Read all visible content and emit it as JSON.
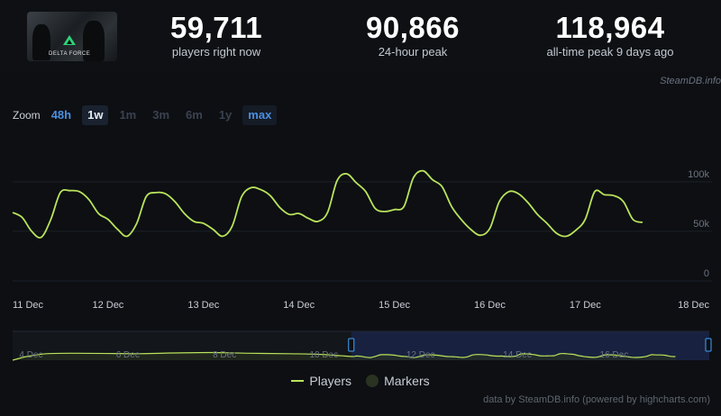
{
  "header": {
    "game_logo_text": "DELTA FORCE",
    "stats": [
      {
        "value": "59,711",
        "label": "players right now"
      },
      {
        "value": "90,866",
        "label": "24-hour peak"
      },
      {
        "value": "118,964",
        "label": "all-time peak 9 days ago"
      }
    ]
  },
  "credit_top": "SteamDB.info",
  "zoom": {
    "label": "Zoom",
    "buttons": [
      {
        "label": "48h",
        "state": "enabled"
      },
      {
        "label": "1w",
        "state": "active"
      },
      {
        "label": "1m",
        "state": "disabled"
      },
      {
        "label": "3m",
        "state": "disabled"
      },
      {
        "label": "6m",
        "state": "disabled"
      },
      {
        "label": "1y",
        "state": "disabled"
      },
      {
        "label": "max",
        "state": "enabled"
      }
    ]
  },
  "chart_data": {
    "type": "line",
    "title": "",
    "xlabel": "",
    "ylabel": "",
    "y_ticks": [
      {
        "value": 0,
        "label": "0"
      },
      {
        "value": 50000,
        "label": "50k"
      },
      {
        "value": 100000,
        "label": "100k"
      }
    ],
    "ylim": [
      0,
      118000
    ],
    "x_ticks": [
      "11 Dec",
      "12 Dec",
      "13 Dec",
      "14 Dec",
      "15 Dec",
      "16 Dec",
      "17 Dec",
      "18 Dec"
    ],
    "xlim": [
      11.0,
      18.3
    ],
    "series": [
      {
        "name": "Players",
        "color": "#b9e35b",
        "points": [
          [
            11.0,
            69000
          ],
          [
            11.1,
            64000
          ],
          [
            11.2,
            50000
          ],
          [
            11.3,
            44000
          ],
          [
            11.4,
            62000
          ],
          [
            11.5,
            89000
          ],
          [
            11.6,
            91000
          ],
          [
            11.7,
            90000
          ],
          [
            11.8,
            82000
          ],
          [
            11.9,
            68000
          ],
          [
            12.0,
            62000
          ],
          [
            12.1,
            52000
          ],
          [
            12.2,
            45000
          ],
          [
            12.3,
            58000
          ],
          [
            12.4,
            85000
          ],
          [
            12.5,
            89000
          ],
          [
            12.6,
            88000
          ],
          [
            12.7,
            80000
          ],
          [
            12.8,
            68000
          ],
          [
            12.9,
            60000
          ],
          [
            13.0,
            58000
          ],
          [
            13.1,
            52000
          ],
          [
            13.2,
            45000
          ],
          [
            13.3,
            55000
          ],
          [
            13.4,
            85000
          ],
          [
            13.5,
            94000
          ],
          [
            13.6,
            92000
          ],
          [
            13.7,
            86000
          ],
          [
            13.8,
            74000
          ],
          [
            13.9,
            67000
          ],
          [
            14.0,
            68000
          ],
          [
            14.1,
            63000
          ],
          [
            14.2,
            60000
          ],
          [
            14.3,
            69000
          ],
          [
            14.4,
            101000
          ],
          [
            14.5,
            108000
          ],
          [
            14.6,
            99000
          ],
          [
            14.7,
            90000
          ],
          [
            14.8,
            73000
          ],
          [
            14.9,
            70000
          ],
          [
            15.0,
            72000
          ],
          [
            15.1,
            75000
          ],
          [
            15.2,
            104000
          ],
          [
            15.3,
            111000
          ],
          [
            15.4,
            102000
          ],
          [
            15.5,
            95000
          ],
          [
            15.6,
            75000
          ],
          [
            15.7,
            62000
          ],
          [
            15.8,
            52000
          ],
          [
            15.9,
            46000
          ],
          [
            16.0,
            53000
          ],
          [
            16.1,
            80000
          ],
          [
            16.2,
            90000
          ],
          [
            16.3,
            88000
          ],
          [
            16.4,
            79000
          ],
          [
            16.5,
            67000
          ],
          [
            16.6,
            58000
          ],
          [
            16.7,
            48000
          ],
          [
            16.8,
            45000
          ],
          [
            16.9,
            51000
          ],
          [
            17.0,
            62000
          ],
          [
            17.1,
            90000
          ],
          [
            17.2,
            87000
          ],
          [
            17.3,
            86000
          ],
          [
            17.4,
            80000
          ],
          [
            17.5,
            62000
          ],
          [
            17.6,
            59000
          ]
        ]
      }
    ],
    "legend": {
      "position": "bottom",
      "items": [
        {
          "label": "Players",
          "kind": "line",
          "color": "#b9e35b"
        },
        {
          "label": "Markers",
          "kind": "circle",
          "color": "#2a3322"
        }
      ]
    },
    "grid": {
      "horizontal": true,
      "vertical": false
    }
  },
  "navigator": {
    "x_ticks": [
      "4 Dec",
      "6 Dec",
      "8 Dec",
      "10 Dec",
      "12 Dec",
      "14 Dec",
      "16 Dec"
    ],
    "xlim": [
      3.9,
      18.3
    ],
    "selection": [
      10.9,
      18.3
    ],
    "handle_color": "#3ea6ff"
  },
  "legend_labels": {
    "players": "Players",
    "markers": "Markers"
  },
  "credit_bottom": "data by SteamDB.info (powered by highcharts.com)"
}
